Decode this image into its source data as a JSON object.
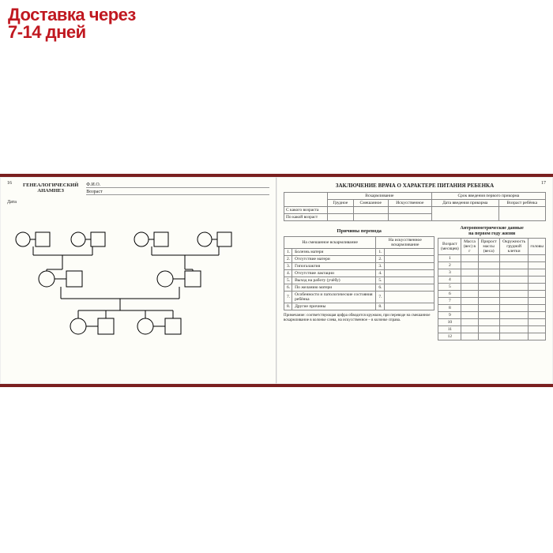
{
  "banner": {
    "line1": "Доставка через",
    "line2": "7-14 дней"
  },
  "left": {
    "page_num": "16",
    "title_l1": "ГЕНЕАЛОГИЧЕСКИЙ",
    "title_l2": "АНАМНЕЗ",
    "fio_label": "Ф.И.О.",
    "age_label": "Возраст",
    "date_label": "Дата"
  },
  "right": {
    "page_num": "17",
    "title": "ЗАКЛЮЧЕНИЕ ВРАЧА О ХАРАКТЕРЕ ПИТАНИЯ РЕБЕНКА",
    "feeding": {
      "header_group": "Вскармливание",
      "header_srok": "Срок введения первого прикорма",
      "cols": [
        "Грудное",
        "Смешанное",
        "Искусственное"
      ],
      "date_col": "Дата введения прикорма",
      "age_col": "Возраст ребёнка",
      "row1": "С какого возраста",
      "row2": "По какой возраст"
    },
    "reasons": {
      "title": "Причины перевода",
      "col_mixed": "На смешанное вскармливание",
      "col_artificial": "На искусственное вскармливание",
      "items": [
        "Болезнь матери",
        "Отсутствие матери",
        "Гипогалактия",
        "Отсутствие лактации",
        "Выход на работу (учёбу)",
        "По желанию матери",
        "Особенности и патологические состояния ребёнка",
        "Другие причины"
      ]
    },
    "anthro": {
      "title_l1": "Антропометрические данные",
      "title_l2": "на первом году жизни",
      "cols": [
        "Возраст (месяцев)",
        "Масса (вес) в г",
        "Прирост массы (веса)",
        "Окружность грудной клетки",
        "головы"
      ],
      "rows": [
        "1",
        "2",
        "3",
        "4",
        "5",
        "6",
        "7",
        "8",
        "9",
        "10",
        "11",
        "12"
      ]
    },
    "note_label": "Примечание:",
    "note_text": "соответствующая цифра обводится кружком, при переводе на смешанное вскармливание в колонке слева, на искусственное – в колонке справа."
  },
  "colors": {
    "banner_text": "#c01820",
    "cover": "#7a1f1f",
    "paper": "#fdfdf8"
  }
}
